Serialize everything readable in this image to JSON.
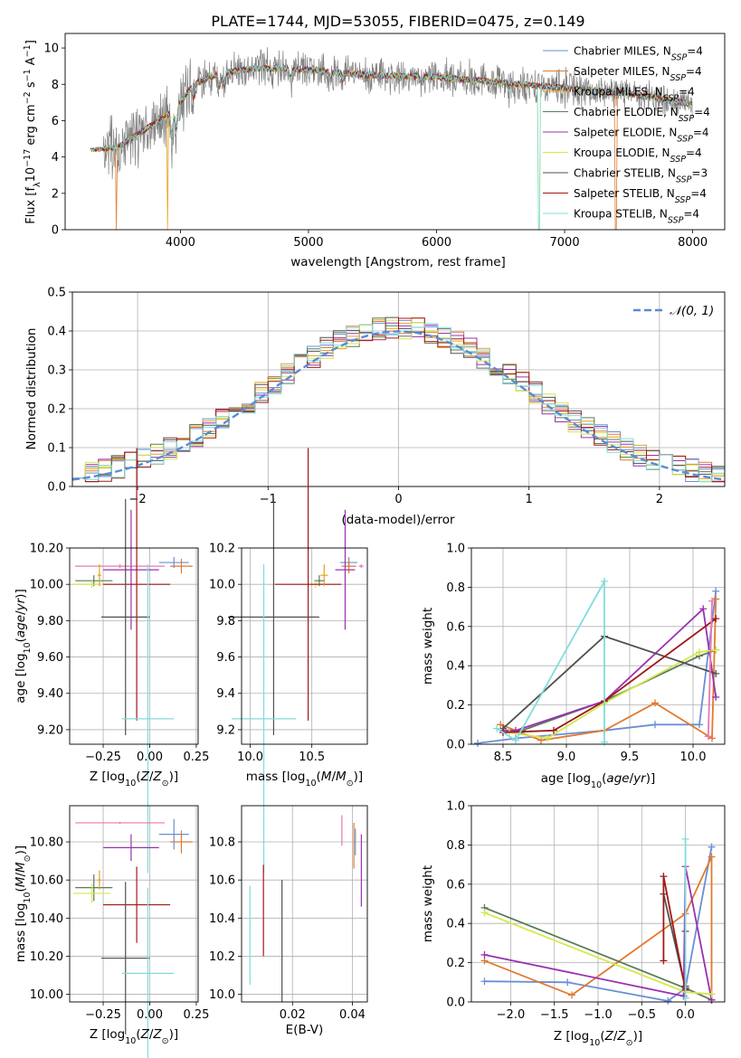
{
  "title": "PLATE=1744, MJD=53055, FIBERID=0475, z=0.149",
  "colors": {
    "Chabrier_MILES": "#6a8fd4",
    "Salpeter_MILES": "#e07a30",
    "Kroupa_MILES": "#e6a020",
    "Chabrier_ELODIE": "#5a7a5a",
    "Salpeter_ELODIE": "#9a30b0",
    "Kroupa_ELODIE": "#d4e84a",
    "Chabrier_STELIB": "#505050",
    "Salpeter_STELIB": "#a01818",
    "Kroupa_STELIB": "#80dcdc",
    "extra_pink": "#e878b0",
    "data_grey": "#808080",
    "normal_curve": "#5b8ad4"
  },
  "chart_data": [
    {
      "id": "spectrum",
      "type": "line",
      "xlabel": "wavelength [Angstrom, rest frame]",
      "ylabel": "Flux [f",
      "xlim": [
        3100,
        8250
      ],
      "ylim": [
        0,
        10.8
      ],
      "xticks": [
        4000,
        5000,
        6000,
        7000,
        8000
      ],
      "yticks": [
        0,
        2,
        4,
        6,
        8,
        10
      ],
      "grid": false,
      "legend_position": "right",
      "legend": [
        {
          "key": "Chabrier_MILES",
          "label": "Chabrier MILES, N",
          "sub": "SSP",
          "n": "=4"
        },
        {
          "key": "Salpeter_MILES",
          "label": "Salpeter MILES, N",
          "sub": "SSP",
          "n": "=4"
        },
        {
          "key": "Kroupa_MILES",
          "label": "Kroupa MILES, N",
          "sub": "SSP",
          "n": "=4"
        },
        {
          "key": "Chabrier_ELODIE",
          "label": "Chabrier ELODIE, N",
          "sub": "SSP",
          "n": "=4"
        },
        {
          "key": "Salpeter_ELODIE",
          "label": "Salpeter ELODIE, N",
          "sub": "SSP",
          "n": "=4"
        },
        {
          "key": "Kroupa_ELODIE",
          "label": "Kroupa ELODIE, N",
          "sub": "SSP",
          "n": "=4"
        },
        {
          "key": "Chabrier_STELIB",
          "label": "Chabrier STELIB, N",
          "sub": "SSP",
          "n": "=3"
        },
        {
          "key": "Salpeter_STELIB",
          "label": "Salpeter STELIB, N",
          "sub": "SSP",
          "n": "=4"
        },
        {
          "key": "Kroupa_STELIB",
          "label": "Kroupa STELIB, N",
          "sub": "SSP",
          "n": "=4"
        }
      ],
      "continuum": [
        [
          3300,
          4.4
        ],
        [
          3500,
          4.5
        ],
        [
          3700,
          5.4
        ],
        [
          3900,
          6.3
        ],
        [
          4000,
          7.0
        ],
        [
          4100,
          8.0
        ],
        [
          4300,
          8.6
        ],
        [
          4600,
          8.9
        ],
        [
          5000,
          8.8
        ],
        [
          5500,
          8.5
        ],
        [
          6000,
          8.4
        ],
        [
          6500,
          8.1
        ],
        [
          7000,
          7.8
        ],
        [
          7500,
          7.5
        ],
        [
          8000,
          6.9
        ]
      ],
      "drops": [
        {
          "x": 3500,
          "keys": [
            "Salpeter_MILES"
          ]
        },
        {
          "x": 3900,
          "keys": [
            "Kroupa_MILES"
          ]
        },
        {
          "x": 6800,
          "keys": [
            "Kroupa_ELODIE",
            "Kroupa_STELIB"
          ]
        },
        {
          "x": 7400,
          "keys": [
            "Salpeter_MILES"
          ]
        }
      ]
    },
    {
      "id": "residuals",
      "type": "line",
      "xlabel": "(data-model)/error",
      "ylabel": "Normed distribution",
      "xlim": [
        -2.5,
        2.5
      ],
      "ylim": [
        0,
        0.5
      ],
      "xticks": [
        -2,
        -1,
        0,
        1,
        2
      ],
      "yticks": [
        0.0,
        0.1,
        0.2,
        0.3,
        0.4,
        0.5
      ],
      "grid": true,
      "legend_position": "top-right",
      "legend": [
        {
          "key": "normal_curve",
          "label": "𝒩(0, 1)"
        }
      ],
      "bin_width": 0.1,
      "curve": "normal(0,1)"
    },
    {
      "id": "age-vs-Z",
      "type": "scatter",
      "xlabel": "Z [log",
      "ylabel": "age  [log",
      "xlim": [
        -0.43,
        0.26
      ],
      "ylim": [
        9.12,
        10.2
      ],
      "xticks": [
        -0.25,
        0.0,
        0.25
      ],
      "yticks": [
        9.2,
        9.4,
        9.6,
        9.8,
        10.0,
        10.2
      ],
      "grid": true,
      "points": [
        {
          "key": "Chabrier_MILES",
          "x": 0.13,
          "y": 10.12,
          "xerr": 0.08,
          "yerr": 0.03
        },
        {
          "key": "Salpeter_MILES",
          "x": 0.17,
          "y": 10.1,
          "xerr": 0.06,
          "yerr": 0.04
        },
        {
          "key": "extra_pink",
          "x": -0.16,
          "y": 10.1,
          "xerr": 0.24,
          "yerr": 0.01
        },
        {
          "key": "Salpeter_ELODIE",
          "x": -0.1,
          "y": 10.08,
          "xerr": 0.15,
          "yerr": 0.33
        },
        {
          "key": "Chabrier_ELODIE",
          "x": -0.3,
          "y": 10.02,
          "xerr": 0.1,
          "yerr": 0.03
        },
        {
          "key": "Kroupa_ELODIE",
          "x": -0.31,
          "y": 10.0,
          "xerr": 0.1,
          "yerr": 0.02
        },
        {
          "key": "Salpeter_STELIB",
          "x": -0.07,
          "y": 10.0,
          "xerr": 0.18,
          "yerr": 0.75
        },
        {
          "key": "Kroupa_MILES",
          "x": -0.27,
          "y": 10.05,
          "xerr": 0.01,
          "yerr": 0.06
        },
        {
          "key": "Chabrier_STELIB",
          "x": -0.13,
          "y": 9.82,
          "xerr": 0.13,
          "yerr": 0.65
        },
        {
          "key": "Kroupa_STELIB",
          "x": -0.01,
          "y": 9.26,
          "xerr": 0.14,
          "yerr": 0.85
        }
      ]
    },
    {
      "id": "age-vs-mass",
      "type": "scatter",
      "xlabel": "mass [log",
      "ylabel": "",
      "xlim": [
        9.93,
        10.95
      ],
      "ylim": [
        9.12,
        10.2
      ],
      "xticks": [
        10.0,
        10.5
      ],
      "yticks": [
        9.2,
        9.4,
        9.6,
        9.8,
        10.0,
        10.2
      ],
      "grid": true,
      "points": [
        {
          "key": "Chabrier_MILES",
          "x": 10.8,
          "y": 10.12,
          "xerr": 0.07,
          "yerr": 0.03
        },
        {
          "key": "Salpeter_MILES",
          "x": 10.8,
          "y": 10.1,
          "xerr": 0.06,
          "yerr": 0.04
        },
        {
          "key": "extra_pink",
          "x": 10.9,
          "y": 10.1,
          "xerr": 0.02,
          "yerr": 0.01
        },
        {
          "key": "Salpeter_ELODIE",
          "x": 10.77,
          "y": 10.08,
          "xerr": 0.08,
          "yerr": 0.33
        },
        {
          "key": "Chabrier_ELODIE",
          "x": 10.56,
          "y": 10.02,
          "xerr": 0.04,
          "yerr": 0.03
        },
        {
          "key": "Kroupa_ELODIE",
          "x": 10.53,
          "y": 10.0,
          "xerr": 0.04,
          "yerr": 0.02
        },
        {
          "key": "Salpeter_STELIB",
          "x": 10.47,
          "y": 10.0,
          "xerr": 0.27,
          "yerr": 0.75
        },
        {
          "key": "Kroupa_MILES",
          "x": 10.6,
          "y": 10.05,
          "xerr": 0.03,
          "yerr": 0.06
        },
        {
          "key": "Chabrier_STELIB",
          "x": 10.19,
          "y": 9.82,
          "xerr": 0.37,
          "yerr": 0.65
        },
        {
          "key": "Kroupa_STELIB",
          "x": 10.11,
          "y": 9.26,
          "xerr": 0.26,
          "yerr": 0.85
        }
      ]
    },
    {
      "id": "mass-weight-vs-age",
      "type": "line",
      "xlabel": "age  [log",
      "ylabel": "mass weight",
      "xlim": [
        8.25,
        10.25
      ],
      "ylim": [
        0,
        1.0
      ],
      "xticks": [
        8.5,
        9.0,
        9.5,
        10.0
      ],
      "yticks": [
        0.0,
        0.2,
        0.4,
        0.6,
        0.8,
        1.0
      ],
      "grid": true,
      "series": [
        {
          "key": "Chabrier_MILES",
          "x": [
            8.3,
            8.6,
            9.3,
            9.7,
            10.05,
            10.18
          ],
          "y": [
            0.005,
            0.03,
            0.07,
            0.1,
            0.1,
            0.78
          ]
        },
        {
          "key": "Salpeter_MILES",
          "x": [
            8.48,
            8.8,
            9.3,
            9.7,
            10.15,
            10.18
          ],
          "y": [
            0.1,
            0.02,
            0.07,
            0.21,
            0.03,
            0.74
          ]
        },
        {
          "key": "Chabrier_ELODIE",
          "x": [
            8.5,
            8.65,
            9.3,
            10.05,
            10.18
          ],
          "y": [
            0.07,
            0.07,
            0.22,
            0.45,
            0.48
          ]
        },
        {
          "key": "Salpeter_ELODIE",
          "x": [
            8.5,
            8.6,
            9.3,
            10.08,
            10.18
          ],
          "y": [
            0.07,
            0.07,
            0.22,
            0.69,
            0.24
          ]
        },
        {
          "key": "Kroupa_ELODIE",
          "x": [
            8.55,
            8.85,
            9.3,
            10.05,
            10.18
          ],
          "y": [
            0.06,
            0.03,
            0.21,
            0.47,
            0.48
          ]
        },
        {
          "key": "Chabrier_STELIB",
          "x": [
            8.5,
            9.3,
            10.18
          ],
          "y": [
            0.08,
            0.55,
            0.36
          ]
        },
        {
          "key": "Salpeter_STELIB",
          "x": [
            8.5,
            8.9,
            9.3,
            10.18
          ],
          "y": [
            0.06,
            0.07,
            0.22,
            0.64
          ]
        },
        {
          "key": "Kroupa_STELIB",
          "x": [
            8.45,
            8.6,
            9.3,
            9.3
          ],
          "y": [
            0.08,
            0.02,
            0.83,
            0.01
          ]
        },
        {
          "key": "extra_pink",
          "x": [
            10.12,
            10.15
          ],
          "y": [
            0.04,
            0.73
          ]
        }
      ]
    },
    {
      "id": "mass-vs-Z",
      "type": "scatter",
      "xlabel": "Z [log",
      "ylabel": "mass [log",
      "xlim": [
        -0.43,
        0.26
      ],
      "ylim": [
        9.96,
        10.99
      ],
      "xticks": [
        -0.25,
        0.0,
        0.25
      ],
      "yticks": [
        10.0,
        10.2,
        10.4,
        10.6,
        10.8
      ],
      "grid": true,
      "points": [
        {
          "key": "extra_pink",
          "x": -0.16,
          "y": 10.9,
          "xerr": 0.24,
          "yerr": 0.005
        },
        {
          "key": "Chabrier_MILES",
          "x": 0.13,
          "y": 10.84,
          "xerr": 0.08,
          "yerr": 0.08
        },
        {
          "key": "Salpeter_MILES",
          "x": 0.17,
          "y": 10.8,
          "xerr": 0.06,
          "yerr": 0.06
        },
        {
          "key": "Salpeter_ELODIE",
          "x": -0.1,
          "y": 10.77,
          "xerr": 0.15,
          "yerr": 0.07
        },
        {
          "key": "Chabrier_ELODIE",
          "x": -0.3,
          "y": 10.56,
          "xerr": 0.1,
          "yerr": 0.07
        },
        {
          "key": "Kroupa_ELODIE",
          "x": -0.31,
          "y": 10.53,
          "xerr": 0.1,
          "yerr": 0.05
        },
        {
          "key": "Kroupa_MILES",
          "x": -0.27,
          "y": 10.6,
          "xerr": 0.01,
          "yerr": 0.05
        },
        {
          "key": "Salpeter_STELIB",
          "x": -0.07,
          "y": 10.47,
          "xerr": 0.18,
          "yerr": 0.2
        },
        {
          "key": "Chabrier_STELIB",
          "x": -0.13,
          "y": 10.19,
          "xerr": 0.13,
          "yerr": 0.4
        },
        {
          "key": "Kroupa_STELIB",
          "x": -0.01,
          "y": 10.11,
          "xerr": 0.14,
          "yerr": 0.45
        }
      ]
    },
    {
      "id": "mass-vs-EBV",
      "type": "scatter",
      "xlabel": "E(B-V)",
      "ylabel": "",
      "xlim": [
        0.003,
        0.045
      ],
      "ylim": [
        9.96,
        10.99
      ],
      "xticks": [
        0.02,
        0.04
      ],
      "yticks": [
        10.0,
        10.2,
        10.4,
        10.6,
        10.8
      ],
      "grid": true,
      "points": [
        {
          "key": "extra_pink",
          "x": 0.0365,
          "y": 10.86,
          "xerr": 0.0,
          "yerr": 0.08
        },
        {
          "key": "Salpeter_MILES",
          "x": 0.0405,
          "y": 10.78,
          "xerr": 0.0,
          "yerr": 0.12
        },
        {
          "key": "Salpeter_ELODIE",
          "x": 0.043,
          "y": 10.65,
          "xerr": 0.0,
          "yerr": 0.19
        },
        {
          "key": "Chabrier_MILES",
          "x": 0.041,
          "y": 10.8,
          "xerr": 0.0,
          "yerr": 0.07
        },
        {
          "key": "Salpeter_STELIB",
          "x": 0.0103,
          "y": 10.44,
          "xerr": 0.0,
          "yerr": 0.24
        },
        {
          "key": "Chabrier_STELIB",
          "x": 0.0165,
          "y": 10.28,
          "xerr": 0.0,
          "yerr": 0.32
        },
        {
          "key": "Kroupa_STELIB",
          "x": 0.0058,
          "y": 10.31,
          "xerr": 0.0,
          "yerr": 0.26
        }
      ]
    },
    {
      "id": "mass-weight-vs-Z",
      "type": "line",
      "xlabel": "Z [log",
      "ylabel": "mass weight",
      "xlim": [
        -2.45,
        0.45
      ],
      "ylim": [
        0,
        1.0
      ],
      "xticks": [
        -2.0,
        -1.5,
        -1.0,
        -0.5,
        0.0
      ],
      "yticks": [
        0.0,
        0.2,
        0.4,
        0.6,
        0.8,
        1.0
      ],
      "grid": true,
      "series": [
        {
          "key": "Chabrier_MILES",
          "x": [
            -2.3,
            -1.35,
            -0.2,
            0.0,
            0.3
          ],
          "y": [
            0.105,
            0.1,
            0.005,
            0.07,
            0.79
          ]
        },
        {
          "key": "Salpeter_MILES",
          "x": [
            -2.3,
            -1.3,
            0.0,
            0.3,
            0.3
          ],
          "y": [
            0.21,
            0.035,
            0.45,
            0.74,
            0.01
          ]
        },
        {
          "key": "Chabrier_ELODIE",
          "x": [
            -2.3,
            0.0,
            0.3
          ],
          "y": [
            0.48,
            0.07,
            0.01
          ]
        },
        {
          "key": "Salpeter_ELODIE",
          "x": [
            -2.3,
            -0.02,
            0.0,
            0.3
          ],
          "y": [
            0.24,
            0.03,
            0.69,
            0.01
          ]
        },
        {
          "key": "Kroupa_ELODIE",
          "x": [
            -2.3,
            0.0,
            0.3
          ],
          "y": [
            0.455,
            0.05,
            0.04
          ]
        },
        {
          "key": "Chabrier_STELIB",
          "x": [
            -0.25,
            0.0,
            0.0
          ],
          "y": [
            0.55,
            0.07,
            0.36
          ]
        },
        {
          "key": "Salpeter_STELIB",
          "x": [
            -0.25,
            -0.25,
            0.0,
            0.0
          ],
          "y": [
            0.21,
            0.64,
            0.06,
            0.08
          ]
        },
        {
          "key": "Kroupa_STELIB",
          "x": [
            0.0,
            0.0,
            0.0
          ],
          "y": [
            0.02,
            0.83,
            0.02
          ]
        }
      ]
    }
  ]
}
